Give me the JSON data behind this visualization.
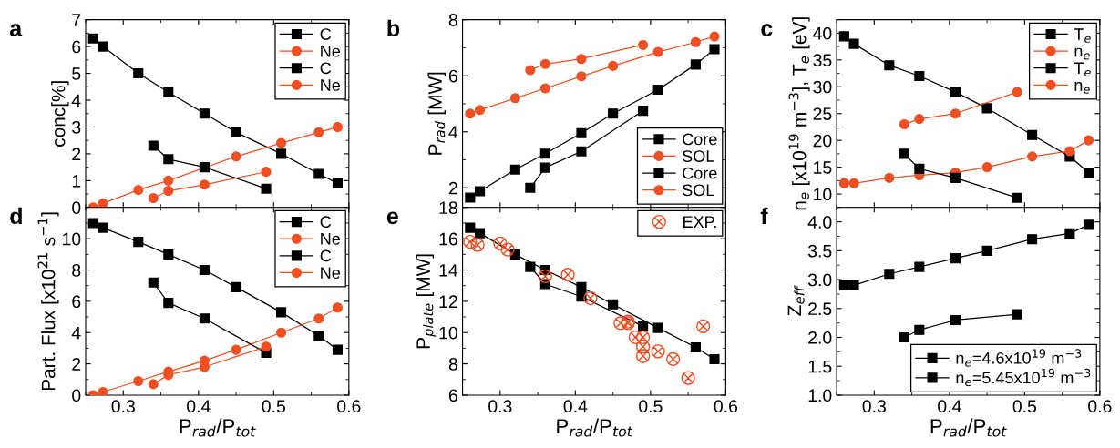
{
  "chart_data": [
    {
      "type": "line",
      "title": "a",
      "ylabel": "conc[%]",
      "xlim": [
        0.25,
        0.6
      ],
      "xticks": [
        0.3,
        0.4,
        0.5,
        0.6
      ],
      "ylim": [
        0,
        7
      ],
      "yticks": [
        0,
        1,
        2,
        3,
        4,
        5,
        6,
        7
      ],
      "tick_labels": "y",
      "legend": "top right",
      "series": [
        {
          "name": "C",
          "color": "#000000",
          "marker": "square",
          "x": [
            0.26,
            0.273,
            0.32,
            0.36,
            0.408,
            0.45,
            0.51,
            0.56,
            0.585
          ],
          "values": [
            6.3,
            6.0,
            5.0,
            4.3,
            3.5,
            2.8,
            2.0,
            1.25,
            0.9
          ]
        },
        {
          "name": "Ne",
          "color": "#f04e23",
          "marker": "circle",
          "x": [
            0.26,
            0.273,
            0.32,
            0.36,
            0.45,
            0.51,
            0.56,
            0.585
          ],
          "values": [
            0,
            0.15,
            0.65,
            1.0,
            1.9,
            2.4,
            2.8,
            3.0
          ]
        },
        {
          "name": "C",
          "color": "#000000",
          "marker": "square",
          "x": [
            0.34,
            0.36,
            0.408,
            0.49
          ],
          "values": [
            2.3,
            1.8,
            1.5,
            0.7
          ]
        },
        {
          "name": "Ne",
          "color": "#f04e23",
          "marker": "circle",
          "x": [
            0.34,
            0.36,
            0.408,
            0.49
          ],
          "values": [
            0.35,
            0.62,
            0.85,
            1.33
          ]
        }
      ]
    },
    {
      "type": "line",
      "title": "b",
      "ylabel": "P$_{rad}$ [MW]",
      "xlim": [
        0.25,
        0.6
      ],
      "xticks": [
        0.3,
        0.4,
        0.5,
        0.6
      ],
      "ylim": [
        1.3,
        8
      ],
      "yticks": [
        2,
        4,
        6,
        8
      ],
      "tick_labels": "y",
      "legend": "bottom right",
      "series": [
        {
          "name": "Core",
          "color": "#000000",
          "marker": "square",
          "x": [
            0.26,
            0.273,
            0.32,
            0.36,
            0.408,
            0.45,
            0.51,
            0.56,
            0.585
          ],
          "values": [
            1.65,
            1.88,
            2.65,
            3.22,
            3.95,
            4.65,
            5.5,
            6.4,
            6.95
          ]
        },
        {
          "name": "SOL",
          "color": "#f04e23",
          "marker": "circle",
          "x": [
            0.26,
            0.273,
            0.32,
            0.36,
            0.408,
            0.45,
            0.51,
            0.56,
            0.585
          ],
          "values": [
            4.65,
            4.78,
            5.2,
            5.55,
            5.98,
            6.35,
            6.85,
            7.2,
            7.4
          ]
        },
        {
          "name": "Core",
          "color": "#000000",
          "marker": "square",
          "x": [
            0.34,
            0.36,
            0.408,
            0.49
          ],
          "values": [
            2.0,
            2.72,
            3.3,
            4.75
          ]
        },
        {
          "name": "SOL",
          "color": "#f04e23",
          "marker": "circle",
          "x": [
            0.34,
            0.36,
            0.408,
            0.49
          ],
          "values": [
            6.2,
            6.42,
            6.6,
            7.1
          ]
        }
      ]
    },
    {
      "type": "line",
      "title": "c",
      "ylabel": "n$_{e}$ [x10$^{19}$ m$^{−3}$], T$_{e}$ [eV]",
      "xlim": [
        0.25,
        0.6
      ],
      "xticks": [
        0.3,
        0.4,
        0.5,
        0.6
      ],
      "ylim": [
        7.5,
        42.5
      ],
      "yticks": [
        10,
        15,
        20,
        25,
        30,
        35,
        40
      ],
      "tick_labels": "y",
      "legend": "top right",
      "series": [
        {
          "name": "T$_{e}$",
          "color": "#000000",
          "marker": "square",
          "x": [
            0.26,
            0.273,
            0.32,
            0.36,
            0.408,
            0.45,
            0.51,
            0.56,
            0.585
          ],
          "values": [
            39.4,
            38,
            34,
            32,
            29,
            26,
            21,
            17,
            14
          ]
        },
        {
          "name": "n$_{e}$",
          "color": "#f04e23",
          "marker": "circle",
          "x": [
            0.26,
            0.273,
            0.32,
            0.36,
            0.408,
            0.45,
            0.51,
            0.56,
            0.585
          ],
          "values": [
            12,
            12,
            13,
            13.5,
            14,
            15,
            17,
            18,
            20
          ]
        },
        {
          "name": "T$_{e}$",
          "color": "#000000",
          "marker": "square",
          "x": [
            0.34,
            0.36,
            0.408,
            0.49
          ],
          "values": [
            17.5,
            14.7,
            13,
            9.3
          ]
        },
        {
          "name": "n$_{e}$",
          "color": "#f04e23",
          "marker": "circle",
          "x": [
            0.34,
            0.36,
            0.408,
            0.49
          ],
          "values": [
            23,
            24,
            25,
            29
          ]
        }
      ]
    },
    {
      "type": "line",
      "title": "d",
      "xlabel": "P$_{rad}$/P$_{tot}$",
      "ylabel": "Part. Flux [x10$^{21}$ s$^{−1}$]",
      "xlim": [
        0.25,
        0.6
      ],
      "xticks": [
        0.3,
        0.4,
        0.5,
        0.6
      ],
      "ylim": [
        0,
        12
      ],
      "yticks": [
        0,
        2,
        4,
        6,
        8,
        10
      ],
      "legend": "top right",
      "series": [
        {
          "name": "C",
          "color": "#000000",
          "marker": "square",
          "x": [
            0.26,
            0.273,
            0.32,
            0.36,
            0.408,
            0.45,
            0.51,
            0.56,
            0.585
          ],
          "values": [
            11.0,
            10.7,
            9.8,
            9.0,
            8.0,
            6.9,
            5.3,
            3.8,
            2.9
          ]
        },
        {
          "name": "Ne",
          "color": "#f04e23",
          "marker": "circle",
          "x": [
            0.26,
            0.273,
            0.32,
            0.36,
            0.408,
            0.45,
            0.51,
            0.56,
            0.585
          ],
          "values": [
            0,
            0.2,
            0.9,
            1.5,
            2.2,
            2.9,
            4.0,
            4.9,
            5.6
          ]
        },
        {
          "name": "C",
          "color": "#000000",
          "marker": "square",
          "x": [
            0.34,
            0.36,
            0.408,
            0.49
          ],
          "values": [
            7.2,
            5.9,
            4.9,
            2.7
          ]
        },
        {
          "name": "Ne",
          "color": "#f04e23",
          "marker": "circle",
          "x": [
            0.34,
            0.36,
            0.408,
            0.49
          ],
          "values": [
            0.7,
            1.3,
            1.8,
            3.1
          ]
        }
      ]
    },
    {
      "type": "line",
      "title": "e",
      "xlabel": "P$_{rad}$/P$_{tot}$",
      "ylabel": "P$_{plate}$ [MW]",
      "xlim": [
        0.25,
        0.6
      ],
      "xticks": [
        0.3,
        0.4,
        0.5,
        0.6
      ],
      "ylim": [
        6,
        18
      ],
      "yticks": [
        6,
        8,
        10,
        12,
        14,
        16,
        18
      ],
      "legend": "top right",
      "series": [
        {
          "color": "#000000",
          "marker": "square",
          "x": [
            0.26,
            0.273,
            0.32,
            0.36,
            0.408,
            0.45,
            0.51,
            0.56,
            0.585
          ],
          "values": [
            16.7,
            16.35,
            15.0,
            14.0,
            12.9,
            11.8,
            10.3,
            9.05,
            8.3
          ]
        },
        {
          "color": "#000000",
          "marker": "square",
          "x": [
            0.34,
            0.36,
            0.408,
            0.49
          ],
          "values": [
            14.2,
            13.1,
            12.3,
            10.4
          ]
        },
        {
          "name": "EXP.",
          "type": "scatter",
          "color": "#f04e23",
          "marker": "cross",
          "x": [
            0.26,
            0.27,
            0.3,
            0.31,
            0.36,
            0.39,
            0.42,
            0.46,
            0.47,
            0.47,
            0.48,
            0.49,
            0.49,
            0.49,
            0.51,
            0.53,
            0.55,
            0.57
          ],
          "values": [
            15.8,
            15.6,
            15.7,
            15.3,
            13.6,
            13.7,
            12.2,
            10.6,
            10.6,
            10.7,
            9.7,
            9.7,
            9.1,
            8.5,
            8.8,
            8.3,
            7.1,
            10.4
          ]
        }
      ]
    },
    {
      "type": "line",
      "title": "f",
      "xlabel": "P$_{rad}$/P$_{tot}$",
      "ylabel": "Z$_{eff}$",
      "xlim": [
        0.25,
        0.6
      ],
      "xticks": [
        0.3,
        0.4,
        0.5,
        0.6
      ],
      "ylim": [
        1,
        4.25
      ],
      "yticks": [
        {
          "value": 1,
          "label": "1.0"
        },
        {
          "value": 1.5,
          "label": "1.5"
        },
        {
          "value": 2,
          "label": "2.0"
        },
        {
          "value": 2.5,
          "label": "2.5"
        },
        {
          "value": 3,
          "label": "3.0"
        },
        {
          "value": 3.5,
          "label": "3.5"
        },
        {
          "value": 4,
          "label": "4.0"
        }
      ],
      "legend": "bottom right",
      "series": [
        {
          "name": "n$_{e}$=4.6x10$^{19}$ m$^{−3}$",
          "color": "#000000",
          "marker": "square",
          "x": [
            0.26,
            0.273,
            0.32,
            0.36,
            0.408,
            0.45,
            0.51,
            0.56,
            0.585
          ],
          "values": [
            2.9,
            2.9,
            3.1,
            3.22,
            3.37,
            3.5,
            3.7,
            3.8,
            3.95
          ]
        },
        {
          "name": "n$_{e}$=5.45x10$^{19}$ m$^{−3}$",
          "color": "#000000",
          "marker": "square",
          "x": [
            0.34,
            0.36,
            0.408,
            0.49
          ],
          "values": [
            2.0,
            2.13,
            2.3,
            2.4
          ]
        }
      ]
    }
  ]
}
